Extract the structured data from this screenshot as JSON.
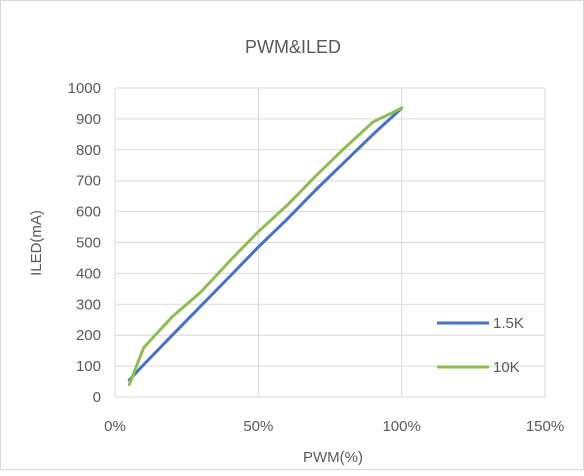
{
  "chart_data": {
    "type": "scatter",
    "title": "PWM&ILED",
    "xlabel": "PWM(%)",
    "ylabel": "ILED(mA)",
    "xlim": [
      0,
      1.5
    ],
    "ylim": [
      0,
      1000
    ],
    "x_tick_labels": [
      "0%",
      "50%",
      "100%",
      "150%"
    ],
    "y_tick_labels": [
      "0",
      "100",
      "200",
      "300",
      "400",
      "500",
      "600",
      "700",
      "800",
      "900",
      "1000"
    ],
    "grid": true,
    "legend_position": "right",
    "series": [
      {
        "name": "1.5K",
        "color": "#4472c4",
        "x": [
          0.05,
          0.1,
          0.2,
          0.3,
          0.4,
          0.5,
          0.6,
          0.7,
          0.8,
          0.9,
          1.0
        ],
        "y": [
          55,
          105,
          200,
          295,
          390,
          485,
          575,
          670,
          760,
          850,
          935
        ]
      },
      {
        "name": "10K",
        "color": "#8dbd4f",
        "x": [
          0.05,
          0.1,
          0.2,
          0.3,
          0.4,
          0.5,
          0.6,
          0.7,
          0.8,
          0.9,
          1.0
        ],
        "y": [
          40,
          160,
          260,
          340,
          440,
          535,
          620,
          715,
          805,
          890,
          935
        ]
      }
    ]
  }
}
